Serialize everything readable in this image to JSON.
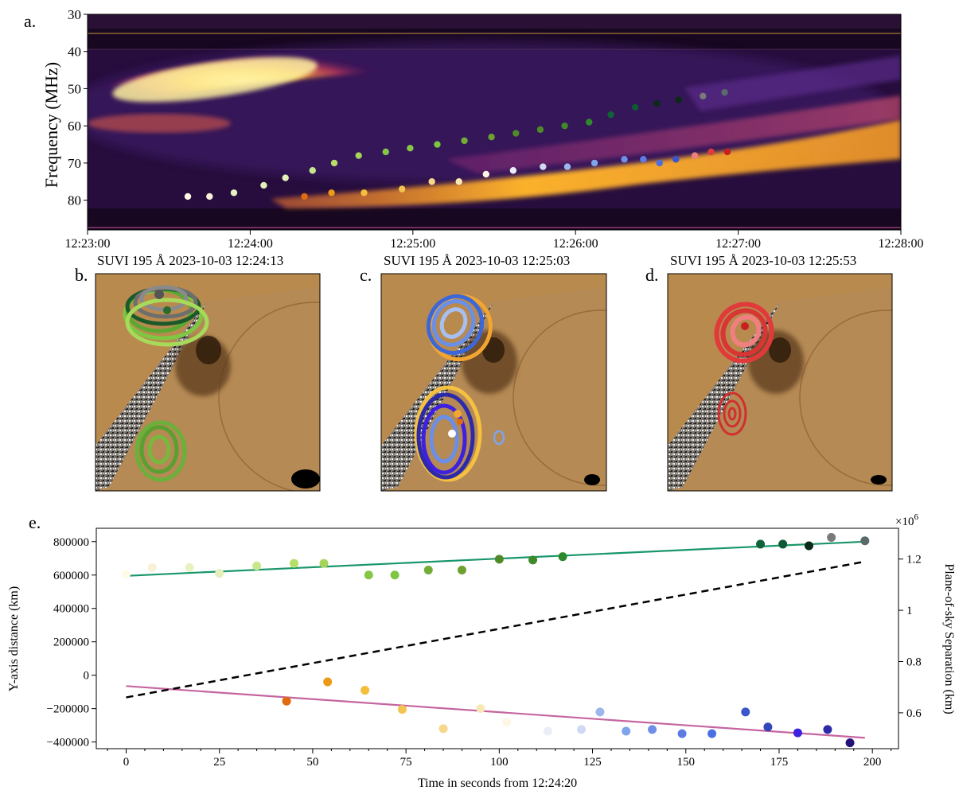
{
  "panel_a": {
    "letter": "a.",
    "ylabel": "Frequency (MHz)",
    "y_ticks": [
      "30",
      "40",
      "50",
      "60",
      "70",
      "80"
    ],
    "x_ticks": [
      "12:23:00",
      "12:24:00",
      "12:25:00",
      "12:26:00",
      "12:27:00",
      "12:28:00"
    ]
  },
  "panel_b": {
    "letter": "b.",
    "title": "SUVI 195 Å 2023-10-03 12:24:13"
  },
  "panel_c": {
    "letter": "c.",
    "title": "SUVI 195 Å 2023-10-03 12:25:03"
  },
  "panel_d": {
    "letter": "d.",
    "title": "SUVI 195 Å 2023-10-03 12:25:53"
  },
  "panel_e": {
    "letter": "e.",
    "xlabel": "Time in seconds from 12:24:20",
    "ylabel_left": "Y-axis distance (km)",
    "ylabel_right": "Plane-of-sky Separation (km)",
    "right_exponent": "×10",
    "right_exponent_power": "6",
    "x_ticks": [
      "0",
      "25",
      "50",
      "75",
      "100",
      "125",
      "150",
      "175",
      "200"
    ],
    "y_ticks_left": [
      "800000",
      "600000",
      "400000",
      "200000",
      "0",
      "−200000",
      "−400000"
    ],
    "y_ticks_right": [
      "1.2",
      "1",
      "0.8",
      "0.6"
    ]
  },
  "chart_data": [
    {
      "type": "scatter",
      "panel": "a",
      "description_free": true,
      "xlim": [
        "12:23:00",
        "12:28:00"
      ],
      "ylim": [
        30,
        88
      ],
      "series": [
        {
          "color": "#7ac142",
          "x": [
            "12:23:37",
            "12:23:45",
            "12:23:54",
            "12:24:05",
            "12:24:13",
            "12:24:23",
            "12:24:31",
            "12:24:40",
            "12:24:50",
            "12:24:59",
            "12:25:09",
            "12:25:19",
            "12:25:29",
            "12:25:38",
            "12:25:47",
            "12:25:56",
            "12:26:05",
            "12:26:13",
            "12:26:22",
            "12:26:30",
            "12:26:38",
            "12:26:47",
            "12:26:55"
          ],
          "y": [
            79,
            79,
            78,
            76,
            74,
            72,
            70,
            68,
            67,
            66,
            65,
            64,
            63,
            62,
            61,
            60,
            59,
            57,
            55,
            54,
            53,
            52,
            51
          ]
        },
        {
          "color": "#e8a020",
          "x": [
            "12:24:20",
            "12:24:30",
            "12:24:42",
            "12:24:56",
            "12:25:07",
            "12:25:17",
            "12:25:27",
            "12:25:37",
            "12:25:48",
            "12:25:57",
            "12:26:07",
            "12:26:18",
            "12:26:25",
            "12:26:31",
            "12:26:37",
            "12:26:44",
            "12:26:50",
            "12:26:56"
          ],
          "y": [
            79,
            78,
            78,
            77,
            75,
            75,
            73,
            72,
            71,
            71,
            70,
            69,
            69,
            70,
            69,
            68,
            67,
            67
          ]
        }
      ]
    },
    {
      "type": "scatter",
      "panel": "e",
      "xlim": [
        -8,
        207
      ],
      "ylim": [
        -440000,
        880000
      ],
      "y2lim": [
        0.46,
        1.32
      ],
      "y2_scale": 1000000,
      "series": [
        {
          "name_free": true,
          "marker": "circle",
          "axis": "left",
          "x": [
            0,
            7,
            17,
            25,
            35,
            45,
            53,
            65,
            72,
            81,
            90,
            100,
            109,
            117,
            170,
            176,
            183,
            189,
            198
          ],
          "y": [
            605000,
            645000,
            645000,
            610000,
            655000,
            670000,
            670000,
            600000,
            600000,
            630000,
            630000,
            695000,
            690000,
            710000,
            785000,
            785000,
            775000,
            825000,
            805000
          ],
          "colors": [
            "#fffbe6",
            "#f8f1d8",
            "#e6f3c0",
            "#e3f0b8",
            "#c7e78c",
            "#b5de6b",
            "#a6d45a",
            "#86c647",
            "#7cc641",
            "#72ad37",
            "#6ea031",
            "#4f8a29",
            "#3f8a2a",
            "#2d8a2d",
            "#11623a",
            "#0f5a34",
            "#0b2a18",
            "#7a7a7a",
            "#5a6a6a"
          ]
        },
        {
          "marker": "circle",
          "axis": "left",
          "x": [
            43,
            54,
            64,
            74,
            85,
            95,
            102,
            113,
            122,
            127,
            134,
            141,
            149,
            157,
            166,
            172,
            180,
            188,
            194
          ],
          "y": [
            -155000,
            -40000,
            -90000,
            -205000,
            -320000,
            -200000,
            -280000,
            -335000,
            -325000,
            -220000,
            -335000,
            -325000,
            -350000,
            -350000,
            -220000,
            -310000,
            -345000,
            -325000,
            -405000
          ],
          "colors": [
            "#e06a10",
            "#ec9a15",
            "#f5be3a",
            "#f3c450",
            "#f7d88a",
            "#f9e8b6",
            "#fff7e6",
            "#ebeef8",
            "#cfd9f4",
            "#9fb6ec",
            "#7ea4ea",
            "#6f8ee6",
            "#5d7be5",
            "#4a6fe0",
            "#3a56cc",
            "#3048b8",
            "#3d20e0",
            "#2c2aa8",
            "#25107a"
          ]
        },
        {
          "line": "solid",
          "color": "#19966a",
          "axis": "left",
          "x": [
            0,
            198
          ],
          "y": [
            595000,
            800000
          ]
        },
        {
          "line": "solid",
          "color": "#c565a0",
          "axis": "left",
          "x": [
            0,
            198
          ],
          "y": [
            -65000,
            -375000
          ]
        },
        {
          "line": "dashed",
          "color": "#000000",
          "axis": "right",
          "x": [
            0,
            198
          ],
          "y": [
            0.66,
            1.19
          ]
        }
      ]
    }
  ]
}
